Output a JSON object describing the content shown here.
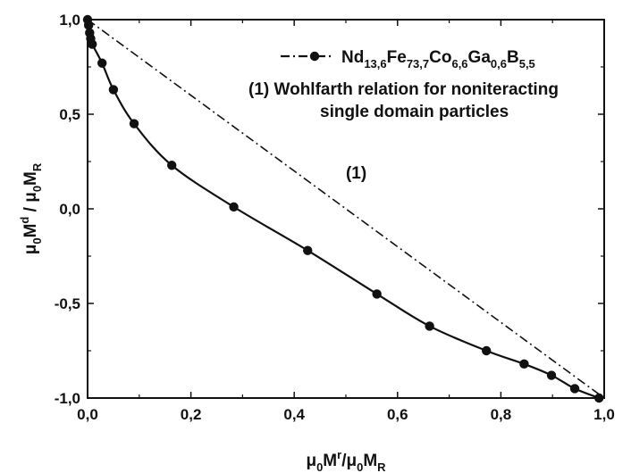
{
  "chart_data": {
    "type": "scatter",
    "xlim": [
      0,
      1
    ],
    "ylim": [
      -1,
      1
    ],
    "x_ticks": [
      "0,0",
      "0,2",
      "0,4",
      "0,6",
      "0,8",
      "1,0"
    ],
    "y_ticks": [
      "1,0",
      "0,5",
      "0,0",
      "-0,5",
      "-1,0"
    ],
    "xlabel": {
      "parts": [
        [
          "μ",
          ""
        ],
        [
          "0",
          "sub"
        ],
        [
          "M",
          ""
        ],
        [
          "r",
          "sup"
        ],
        [
          "/μ",
          ""
        ],
        [
          "0",
          "sub"
        ],
        [
          "M",
          ""
        ],
        [
          "R",
          "sub"
        ]
      ]
    },
    "ylabel": {
      "parts": [
        [
          "μ",
          ""
        ],
        [
          "0",
          "sub"
        ],
        [
          "M",
          ""
        ],
        [
          "d",
          "sup"
        ],
        [
          " / μ",
          ""
        ],
        [
          "0",
          "sub"
        ],
        [
          "M",
          ""
        ],
        [
          "R",
          "sub"
        ]
      ]
    },
    "grid": false,
    "legend_position": "top-right",
    "series": [
      {
        "name": {
          "parts": [
            [
              "Nd",
              ""
            ],
            [
              "13,6",
              "sub"
            ],
            [
              "Fe",
              ""
            ],
            [
              "73,7",
              "sub"
            ],
            [
              "Co",
              ""
            ],
            [
              "6,6",
              "sub"
            ],
            [
              "Ga",
              ""
            ],
            [
              "0,6",
              "sub"
            ],
            [
              "B",
              ""
            ],
            [
              "5,5",
              "sub"
            ]
          ]
        },
        "style": "line-with-markers",
        "color": "#111111",
        "points": [
          [
            0.0,
            1.0
          ],
          [
            0.002,
            0.97
          ],
          [
            0.004,
            0.93
          ],
          [
            0.006,
            0.9
          ],
          [
            0.009,
            0.87
          ],
          [
            0.028,
            0.77
          ],
          [
            0.05,
            0.63
          ],
          [
            0.09,
            0.45
          ],
          [
            0.163,
            0.23
          ],
          [
            0.283,
            0.01
          ],
          [
            0.426,
            -0.22
          ],
          [
            0.56,
            -0.45
          ],
          [
            0.662,
            -0.62
          ],
          [
            0.772,
            -0.75
          ],
          [
            0.845,
            -0.82
          ],
          [
            0.898,
            -0.88
          ],
          [
            0.943,
            -0.95
          ],
          [
            0.99,
            -1.0
          ]
        ]
      },
      {
        "name": "(1) Wohlfarth relation for noniteracting",
        "name_line2": "single domain particles",
        "style": "dash-dot",
        "color": "#111111",
        "points": [
          [
            0.0,
            1.0
          ],
          [
            1.0,
            -1.0
          ]
        ]
      }
    ],
    "annotations": [
      {
        "text": "(1)",
        "x": 0.52,
        "y": 0.16
      }
    ]
  }
}
